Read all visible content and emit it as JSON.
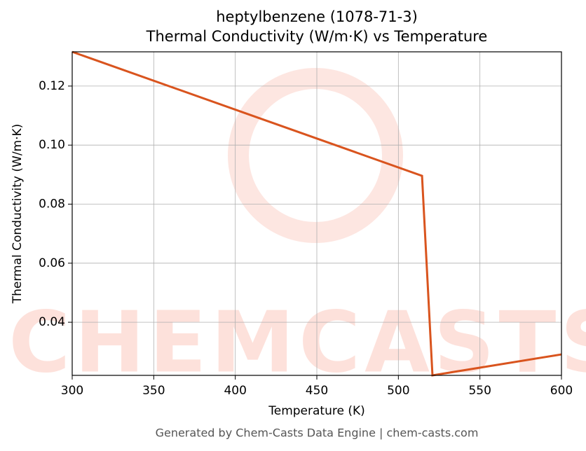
{
  "chart_data": {
    "type": "line",
    "title": "heptylbenzene (1078-71-3)",
    "subtitle": "Thermal Conductivity (W/m·K) vs Temperature",
    "xlabel": "Temperature (K)",
    "ylabel": "Thermal Conductivity (W/m·K)",
    "footer": "Generated by Chem-Casts Data Engine | chem-casts.com",
    "watermark": "CHEMCASTS",
    "x": [
      300,
      514.5,
      520.9,
      600
    ],
    "series": [
      {
        "name": "Thermal Conductivity",
        "color": "#d9541e",
        "values": [
          0.1316,
          0.0896,
          0.022,
          0.0291
        ]
      }
    ],
    "xlim": [
      300,
      600
    ],
    "xticks": [
      300,
      350,
      400,
      450,
      500,
      550,
      600
    ],
    "ylim": [
      0.022,
      0.1316
    ],
    "yticks": [
      {
        "value": 0.04,
        "label": "0.04"
      },
      {
        "value": 0.06,
        "label": "0.06"
      },
      {
        "value": 0.08,
        "label": "0.08"
      },
      {
        "value": 0.1,
        "label": "0.10"
      },
      {
        "value": 0.12,
        "label": "0.12"
      }
    ],
    "grid": true
  }
}
